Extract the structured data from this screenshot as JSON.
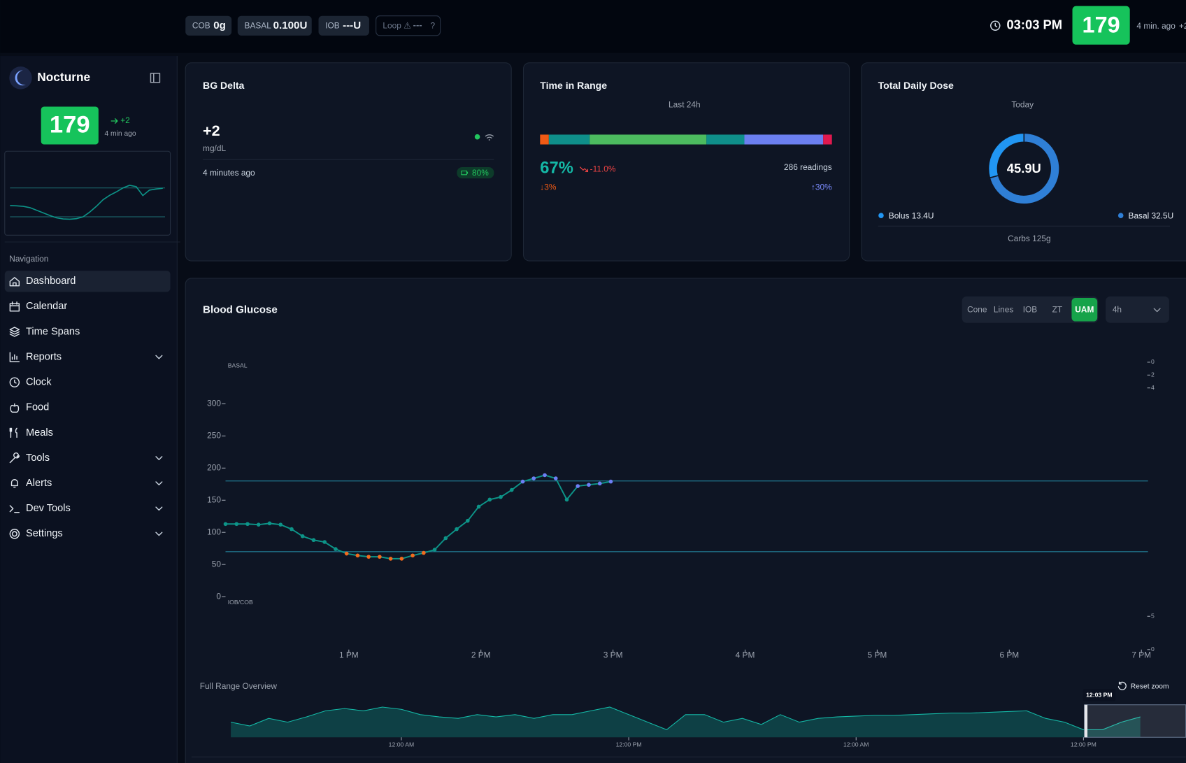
{
  "topbar": {
    "pills": [
      {
        "label": "COB",
        "value": "0g"
      },
      {
        "label": "BASAL",
        "value": "0.100U"
      },
      {
        "label": "IOB",
        "value": "---U"
      },
      {
        "label": "Loop ⚠",
        "value": "---",
        "hint": "?"
      }
    ],
    "time": "03:03 PM",
    "bg": "179",
    "ago": "4 min. ago",
    "delta": "+2"
  },
  "sidebar": {
    "brand": "Nocturne",
    "bg": "179",
    "delta": "+2",
    "ago": "4 min ago",
    "sparkline": {
      "values": [
        113,
        112,
        110,
        105,
        95,
        85,
        75,
        66,
        62,
        61,
        63,
        70,
        88,
        110,
        135,
        152,
        165,
        180,
        190,
        185,
        151,
        172,
        176,
        179
      ],
      "ylim": [
        0,
        320
      ],
      "lines": [
        180,
        70
      ],
      "color": "#0d9488"
    },
    "nav_heading": "Navigation",
    "nav": [
      {
        "label": "Dashboard",
        "active": true
      },
      {
        "label": "Calendar"
      },
      {
        "label": "Time Spans"
      },
      {
        "label": "Reports",
        "expandable": true
      },
      {
        "label": "Clock"
      },
      {
        "label": "Food"
      },
      {
        "label": "Meals"
      },
      {
        "label": "Tools",
        "expandable": true
      },
      {
        "label": "Alerts",
        "expandable": true
      },
      {
        "label": "Dev Tools",
        "expandable": true
      },
      {
        "label": "Settings",
        "expandable": true
      }
    ]
  },
  "bg_delta": {
    "title": "BG Delta",
    "value": "+2",
    "unit": "mg/dL",
    "time": "4 minutes ago",
    "battery": "80%"
  },
  "time_in_range": {
    "title": "Time in Range",
    "subtitle": "Last 24h",
    "segments": [
      {
        "value": 3,
        "color": "#f05a14"
      },
      {
        "value": 14,
        "color": "#0f8f8a"
      },
      {
        "value": 40,
        "color": "#4cbb5f"
      },
      {
        "value": 13,
        "color": "#0f8f8a"
      },
      {
        "value": 27,
        "color": "#6b7ff0"
      },
      {
        "value": 3,
        "color": "#e0194f"
      }
    ],
    "in_range": "67%",
    "change": "-11.0%",
    "readings": "286 readings",
    "low": "↓3%",
    "high": "↑30%"
  },
  "total_daily_dose": {
    "title": "Total Daily Dose",
    "subtitle": "Today",
    "total": "45.9U",
    "values": [
      13.4,
      32.5
    ],
    "colors": [
      "#2196f3",
      "#2f7fd6"
    ],
    "legend": [
      "Bolus 13.4U",
      "Basal 32.5U"
    ],
    "carbs": "Carbs 125g"
  },
  "chart_data": {
    "type": "line",
    "title": "Blood Glucose",
    "buttons": [
      "Cone",
      "Lines",
      "IOB",
      "ZT",
      "UAM"
    ],
    "active_button": 4,
    "range": "4h",
    "top_label": "BASAL",
    "bottom_label": "IOB/COB",
    "x": [
      724,
      729,
      734,
      739,
      744,
      749,
      754,
      759,
      764,
      769,
      774,
      779,
      784,
      789,
      794,
      799,
      804,
      809,
      814,
      819,
      824,
      829,
      834,
      839,
      844,
      849,
      854,
      859,
      864,
      869,
      874,
      879,
      884,
      889,
      894,
      899
    ],
    "values": [
      113,
      113,
      113,
      112,
      114,
      112,
      105,
      94,
      88,
      85,
      74,
      67,
      64,
      62,
      62,
      59,
      59,
      64,
      68,
      73,
      91,
      105,
      118,
      140,
      151,
      155,
      166,
      179,
      184,
      189,
      184,
      151,
      172,
      174,
      176,
      179
    ],
    "color": "#0d9488",
    "point_colors": {
      "low": "#f26b1d",
      "in_range": "#0d9488",
      "high": "#6d7ff5"
    },
    "color_thresholds": [
      70,
      170
    ],
    "targets": [
      180,
      70
    ],
    "xlim": [
      724,
      1143
    ],
    "xticks": [
      {
        "value": 780,
        "label": "1 PM"
      },
      {
        "value": 840,
        "label": "2 PM"
      },
      {
        "value": 900,
        "label": "3 PM"
      },
      {
        "value": 960,
        "label": "4 PM"
      },
      {
        "value": 1020,
        "label": "5 PM"
      },
      {
        "value": 1080,
        "label": "6 PM"
      },
      {
        "value": 1140,
        "label": "7 PM"
      }
    ],
    "ylim": [
      0,
      300
    ],
    "yticks": [
      0,
      50,
      100,
      150,
      200,
      250,
      300
    ],
    "basal_lim": [
      0,
      4
    ],
    "basal_ticks": [
      0,
      2,
      4
    ],
    "iob_lim": [
      0,
      5
    ],
    "iob_ticks": [
      5,
      0
    ]
  },
  "overview": {
    "title": "Full Range Overview",
    "reset": "Reset zoom",
    "x": [
      0,
      1,
      2,
      3,
      4,
      5,
      6,
      7,
      8,
      9,
      10,
      11,
      12,
      13,
      14,
      15,
      16,
      17,
      18,
      19,
      20,
      21,
      22,
      23,
      24,
      25,
      26,
      27,
      28,
      29,
      30,
      31,
      32,
      33,
      34,
      35,
      36,
      37,
      38,
      39,
      40,
      41,
      42,
      43,
      44,
      45,
      46,
      47,
      48
    ],
    "values": [
      80,
      60,
      100,
      80,
      108,
      140,
      152,
      140,
      160,
      148,
      120,
      108,
      100,
      120,
      108,
      120,
      100,
      120,
      120,
      140,
      160,
      120,
      80,
      40,
      120,
      120,
      80,
      100,
      68,
      120,
      80,
      100,
      108,
      112,
      116,
      116,
      120,
      124,
      128,
      128,
      132,
      136,
      140,
      100,
      80,
      40,
      40,
      80,
      108
    ],
    "color": "#0f766e",
    "xlim": [
      0,
      50.4
    ],
    "ylim": [
      0,
      400
    ],
    "xticks": [
      {
        "value": 9,
        "label": "12:00 AM"
      },
      {
        "value": 21,
        "label": "12:00 PM"
      },
      {
        "value": 33,
        "label": "12:00 AM"
      },
      {
        "value": 45,
        "label": "12:00 PM"
      }
    ],
    "selection": {
      "from": 45.05,
      "label": "12:03 PM"
    }
  }
}
